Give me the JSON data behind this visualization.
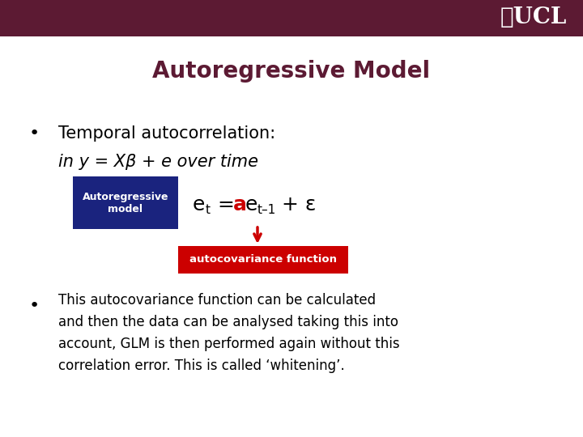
{
  "title": "Autoregressive Model",
  "title_color": "#5c1a33",
  "header_color": "#5c1a33",
  "bg_color": "#ffffff",
  "bullet1_line1": "Temporal autocorrelation:",
  "bullet1_line2": "in y = Xβ + e over time",
  "blue_box_text": "Autoregressive\nmodel",
  "blue_box_color": "#1a237e",
  "red_box_text": "autocovariance function",
  "red_box_color": "#cc0000",
  "bullet2_text": "This autocovariance function can be calculated\nand then the data can be analysed taking this into\naccount, GLM is then performed again without this\ncorrelation error. This is called ‘whitening’.",
  "ucl_text": "♖UCL",
  "dark_red": "#5c1a33",
  "arrow_color": "#cc0000"
}
